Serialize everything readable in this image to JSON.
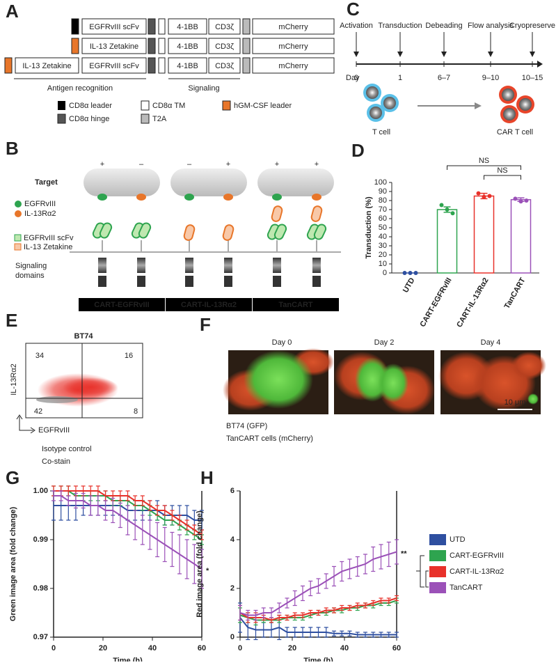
{
  "panels": {
    "A": {
      "label": "A",
      "constructs": [
        [
          "EGFRvIII scFv",
          "4-1BB",
          "CD3ζ",
          "mCherry"
        ],
        [
          "IL-13 Zetakine",
          "4-1BB",
          "CD3ζ",
          "mCherry"
        ],
        [
          "IL-13 Zetakine",
          "EGFRvIII scFv",
          "4-1BB",
          "CD3ζ",
          "mCherry"
        ]
      ],
      "regions": [
        "Antigen recognition",
        "Signaling"
      ],
      "legend": [
        "CD8α leader",
        "CD8α hinge",
        "CD8α TM",
        "T2A",
        "hGM-CSF leader"
      ]
    },
    "B": {
      "label": "B",
      "target": "Target",
      "signs": [
        "+",
        "–",
        "–",
        "+",
        "+",
        "+"
      ],
      "antigens": [
        "EGFRvIII",
        "IL-13Rα2"
      ],
      "binders": [
        "EGFRvIII scFv",
        "IL-13 Zetakine"
      ],
      "signaling": [
        "Signaling",
        "domains"
      ],
      "constructs": [
        "CART-EGFRvIII",
        "CART-IL-13Rα2",
        "TanCART"
      ]
    },
    "C": {
      "label": "C",
      "steps": [
        "Activation",
        "Transduction",
        "Debeading",
        "Flow analysis",
        "Cryopreserve"
      ],
      "day_label": "Day",
      "days": [
        "0",
        "1",
        "6–7",
        "9–10",
        "10–15"
      ],
      "cells": [
        "T cell",
        "CAR T cell"
      ]
    },
    "E": {
      "label": "E",
      "title": "BT74",
      "quadrants": [
        34,
        16,
        42,
        8
      ],
      "y_label": "IL-13Rα2",
      "x_label": "EGFRvIII",
      "legend": [
        "Isotype control",
        "Co-stain"
      ]
    },
    "F": {
      "label": "F",
      "days": [
        "Day 0",
        "Day 2",
        "Day 4"
      ],
      "scale_bar": "10 μm",
      "legend": [
        "BT74 (GFP)",
        "TanCART cells (mCherry)"
      ]
    }
  },
  "chart_data": [
    {
      "type": "bar",
      "label": "D",
      "y_label": "Transduction (%)",
      "categories": [
        "UTD",
        "CART-EGFRvIII",
        "CART-IL-13Rα2",
        "TanCART"
      ],
      "values": [
        0,
        70,
        85,
        81
      ],
      "errors": [
        0,
        3,
        3,
        2
      ],
      "points": [
        [
          0,
          0,
          0
        ],
        [
          75,
          70,
          66
        ],
        [
          88,
          84,
          85
        ],
        [
          82,
          79,
          80
        ]
      ],
      "colors": [
        "#2e4fa0",
        "#2ea44f",
        "#e8312a",
        "#9b51b8"
      ],
      "ylim": [
        0,
        100
      ],
      "yticks": [
        0,
        10,
        20,
        30,
        40,
        50,
        60,
        70,
        80,
        90,
        100
      ],
      "annotations": [
        "NS",
        "NS"
      ]
    },
    {
      "type": "line",
      "label": "G",
      "x_label": "Time (h)",
      "y_label": "Green image area (fold change)",
      "x": [
        0,
        3,
        6,
        9,
        12,
        15,
        18,
        21,
        24,
        27,
        30,
        33,
        36,
        39,
        42,
        45,
        48,
        51,
        54,
        57,
        60
      ],
      "xlim": [
        0,
        60
      ],
      "xticks": [
        0,
        20,
        40,
        60
      ],
      "ylim": [
        0.97,
        1
      ],
      "yticks": [
        0.97,
        0.98,
        0.99,
        {
          "value": 1,
          "label": "1.00"
        }
      ],
      "series": [
        {
          "color": "#2e4fa0",
          "values": [
            0.997,
            0.997,
            0.997,
            0.997,
            0.997,
            0.997,
            0.997,
            0.997,
            0.997,
            0.997,
            0.996,
            0.996,
            0.996,
            0.996,
            0.996,
            0.995,
            0.995,
            0.995,
            0.995,
            0.994,
            0.994
          ],
          "errors": [
            0.003,
            0.003,
            0.003,
            0.003,
            0.002,
            0.002,
            0.002,
            0.002,
            0.002,
            0.002,
            0.002,
            0.002,
            0.002,
            0.002,
            0.002,
            0.002,
            0.002,
            0.002,
            0.002,
            0.002,
            0.002
          ]
        },
        {
          "color": "#2ea44f",
          "values": [
            1,
            1,
            1,
            0.999,
            0.999,
            0.999,
            0.999,
            0.999,
            0.998,
            0.998,
            0.998,
            0.997,
            0.997,
            0.996,
            0.995,
            0.994,
            0.994,
            0.993,
            0.992,
            0.991,
            0.99
          ],
          "errors": [
            0.001,
            0.001,
            0.001,
            0.001,
            0.001,
            0.001,
            0.001,
            0.001,
            0.001,
            0.001,
            0.001,
            0.001,
            0.001,
            0.001,
            0.001,
            0.001,
            0.001,
            0.001,
            0.001,
            0.001,
            0.001
          ]
        },
        {
          "color": "#e8312a",
          "values": [
            1,
            1,
            1,
            1,
            1,
            1,
            1,
            0.999,
            0.999,
            0.999,
            0.999,
            0.998,
            0.998,
            0.997,
            0.996,
            0.996,
            0.995,
            0.994,
            0.993,
            0.992,
            0.991
          ],
          "errors": [
            0.001,
            0.001,
            0.001,
            0.001,
            0.001,
            0.001,
            0.001,
            0.001,
            0.001,
            0.001,
            0.001,
            0.001,
            0.001,
            0.001,
            0.001,
            0.001,
            0.001,
            0.001,
            0.001,
            0.001,
            0.001
          ]
        },
        {
          "color": "#9b51b8",
          "values": [
            0.999,
            0.999,
            0.998,
            0.998,
            0.998,
            0.997,
            0.997,
            0.996,
            0.996,
            0.995,
            0.994,
            0.993,
            0.992,
            0.991,
            0.99,
            0.989,
            0.988,
            0.987,
            0.986,
            0.985,
            0.984
          ],
          "errors": [
            0.001,
            0.001,
            0.001,
            0.0015,
            0.0015,
            0.002,
            0.002,
            0.002,
            0.0025,
            0.0025,
            0.003,
            0.003,
            0.003,
            0.003,
            0.0035,
            0.0035,
            0.0035,
            0.004,
            0.004,
            0.004,
            0.004
          ]
        }
      ],
      "annotation": "*"
    },
    {
      "type": "line",
      "label": "H",
      "x_label": "Time (h)",
      "y_label": "Red image area (fold change)",
      "x": [
        0,
        3,
        6,
        9,
        12,
        15,
        18,
        21,
        24,
        27,
        30,
        33,
        36,
        39,
        42,
        45,
        48,
        51,
        54,
        57,
        60
      ],
      "xlim": [
        0,
        60
      ],
      "xticks": [
        0,
        20,
        40,
        60
      ],
      "ylim": [
        0,
        6
      ],
      "yticks": [
        0,
        2,
        4,
        6
      ],
      "series": [
        {
          "name": "UTD",
          "color": "#2e4fa0",
          "values": [
            0.8,
            0.4,
            0.3,
            0.3,
            0.3,
            0.4,
            0.2,
            0.2,
            0.2,
            0.2,
            0.2,
            0.2,
            0.15,
            0.15,
            0.15,
            0.1,
            0.1,
            0.1,
            0.1,
            0.1,
            0.1
          ],
          "errors": [
            0.6,
            0.5,
            0.4,
            0.3,
            0.3,
            0.5,
            0.2,
            0.2,
            0.2,
            0.2,
            0.2,
            0.2,
            0.1,
            0.1,
            0.1,
            0.1,
            0.1,
            0.1,
            0.1,
            0.1,
            0.1
          ]
        },
        {
          "name": "CART-EGFRvIII",
          "color": "#2ea44f",
          "values": [
            0.9,
            0.8,
            0.7,
            0.7,
            0.7,
            0.7,
            0.8,
            0.8,
            0.8,
            0.9,
            1,
            1,
            1.1,
            1.1,
            1.2,
            1.2,
            1.3,
            1.3,
            1.4,
            1.4,
            1.5
          ],
          "errors": [
            0.3,
            0.2,
            0.2,
            0.1,
            0.1,
            0.1,
            0.1,
            0.1,
            0.1,
            0.1,
            0.1,
            0.1,
            0.1,
            0.1,
            0.1,
            0.1,
            0.1,
            0.1,
            0.1,
            0.1,
            0.1
          ]
        },
        {
          "name": "CART-IL-13Rα2",
          "color": "#e8312a",
          "values": [
            1,
            0.8,
            0.8,
            0.8,
            0.7,
            0.8,
            0.8,
            0.9,
            0.9,
            1,
            1,
            1.1,
            1.1,
            1.2,
            1.2,
            1.3,
            1.3,
            1.4,
            1.5,
            1.5,
            1.6
          ],
          "errors": [
            0.3,
            0.2,
            0.2,
            0.1,
            0.1,
            0.1,
            0.1,
            0.1,
            0.1,
            0.1,
            0.1,
            0.1,
            0.1,
            0.1,
            0.1,
            0.1,
            0.1,
            0.1,
            0.1,
            0.1,
            0.1
          ]
        },
        {
          "name": "TanCART",
          "color": "#9b51b8",
          "values": [
            1,
            0.9,
            0.9,
            1,
            1,
            1.2,
            1.4,
            1.6,
            1.8,
            2,
            2.1,
            2.3,
            2.5,
            2.7,
            2.8,
            2.9,
            3,
            3.2,
            3.3,
            3.4,
            3.5
          ],
          "errors": [
            0.3,
            0.2,
            0.2,
            0.2,
            0.2,
            0.2,
            0.2,
            0.3,
            0.3,
            0.3,
            0.3,
            0.3,
            0.4,
            0.4,
            0.4,
            0.4,
            0.4,
            0.5,
            0.5,
            0.5,
            0.5
          ]
        }
      ],
      "legend": "right",
      "annotation": "**"
    }
  ]
}
